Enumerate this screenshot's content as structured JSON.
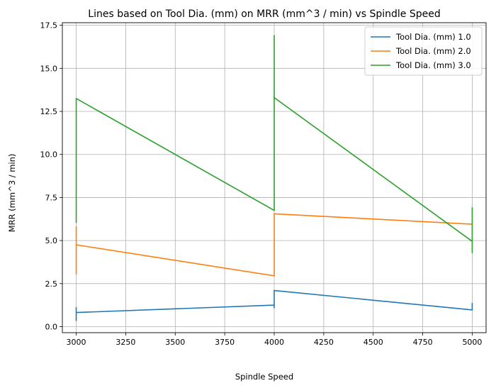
{
  "chart_data": {
    "type": "line",
    "title": "Lines based on Tool Dia. (mm) on MRR (mm^3 / min) vs Spindle Speed",
    "xlabel": "Spindle Speed",
    "ylabel": "MRR (mm^3 / min)",
    "xlim": [
      2930,
      5070
    ],
    "ylim": [
      -0.35,
      17.65
    ],
    "xticks": [
      3000,
      3250,
      3500,
      3750,
      4000,
      4250,
      4500,
      4750,
      5000
    ],
    "xtick_labels": [
      "3000",
      "3250",
      "3500",
      "3750",
      "4000",
      "4250",
      "4500",
      "4750",
      "5000"
    ],
    "yticks": [
      0.0,
      2.5,
      5.0,
      7.5,
      10.0,
      12.5,
      15.0,
      17.5
    ],
    "ytick_labels": [
      "0.0",
      "2.5",
      "5.0",
      "7.5",
      "10.0",
      "12.5",
      "15.0",
      "17.5"
    ],
    "grid": true,
    "legend_position": "top-right",
    "series": [
      {
        "name": "Tool Dia. (mm) 1.0",
        "color": "#1f77b4",
        "x": [
          3000,
          3000,
          3000,
          3000,
          4000,
          4000,
          4000,
          4000,
          5000,
          5000,
          5000
        ],
        "y": [
          0.35,
          1.1,
          0.5,
          0.82,
          1.25,
          1.1,
          1.3,
          2.1,
          0.97,
          1.35,
          0.97
        ]
      },
      {
        "name": "Tool Dia. (mm) 2.0",
        "color": "#ff7f0e",
        "x": [
          3000,
          3000,
          3000,
          3000,
          4000,
          4000,
          5000
        ],
        "y": [
          3.05,
          5.8,
          3.5,
          4.75,
          2.95,
          6.55,
          5.95
        ]
      },
      {
        "name": "Tool Dia. (mm) 3.0",
        "color": "#2ca02c",
        "x": [
          3000,
          3000,
          3000,
          3000,
          4000,
          4000,
          4000,
          4000,
          5000,
          5000,
          5000,
          5000
        ],
        "y": [
          6.05,
          6.4,
          6.1,
          13.25,
          6.75,
          16.9,
          13.35,
          13.3,
          4.95,
          4.3,
          6.9,
          4.95
        ]
      }
    ]
  }
}
